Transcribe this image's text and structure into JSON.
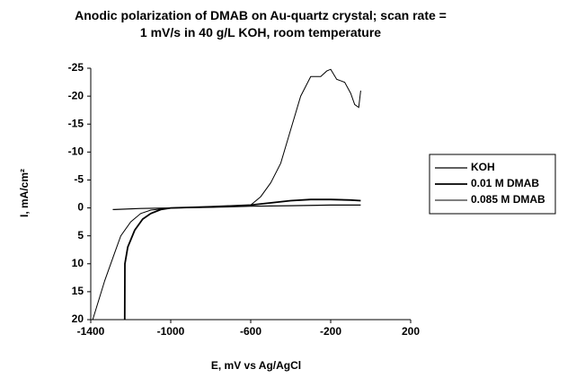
{
  "chart_data": {
    "type": "line",
    "title": "Anodic polarization of DMAB on Au-quartz crystal; scan rate = 1 mV/s in 40 g/L KOH, room temperature",
    "x_label": "E, mV vs Ag/AgCl",
    "y_label": "I, mA/cm²",
    "xlim": [
      -1400,
      200
    ],
    "xticks": [
      -1400,
      -1000,
      -600,
      -200,
      200
    ],
    "ylim": [
      20,
      -25
    ],
    "yticks": [
      -25,
      -20,
      -15,
      -10,
      -5,
      0,
      5,
      10,
      15,
      20
    ],
    "series": [
      {
        "name": "KOH",
        "color": "#000000",
        "x": [
          -1290,
          -1150,
          -1000,
          -800,
          -600,
          -400,
          -200,
          -50
        ],
        "values": [
          0.3,
          0.1,
          0,
          -0.1,
          -0.3,
          -0.4,
          -0.5,
          -0.5
        ]
      },
      {
        "name": "0.01 M DMAB",
        "color": "#000000",
        "x": [
          -1230,
          -1229,
          -1215,
          -1180,
          -1140,
          -1100,
          -1050,
          -1000,
          -800,
          -600,
          -400,
          -300,
          -200,
          -100,
          -50
        ],
        "values": [
          20,
          10,
          7,
          4,
          2,
          1,
          0.3,
          0,
          -0.2,
          -0.5,
          -1.3,
          -1.5,
          -1.5,
          -1.4,
          -1.3
        ]
      },
      {
        "name": "0.085 M DMAB",
        "color": "#000000",
        "x": [
          -1390,
          -1330,
          -1280,
          -1250,
          -1200,
          -1150,
          -1100,
          -1000,
          -800,
          -600,
          -550,
          -500,
          -450,
          -400,
          -350,
          -300,
          -250,
          -220,
          -200,
          -170,
          -130,
          -100,
          -80,
          -60,
          -50
        ],
        "values": [
          20,
          13,
          8,
          5,
          2.5,
          1,
          0.4,
          0,
          -0.2,
          -0.5,
          -2,
          -4.5,
          -8,
          -14,
          -20,
          -23.5,
          -23.5,
          -24.5,
          -24.8,
          -23,
          -22.5,
          -20.5,
          -18.5,
          -18,
          -21
        ]
      }
    ],
    "legend": "right",
    "grid": false
  }
}
